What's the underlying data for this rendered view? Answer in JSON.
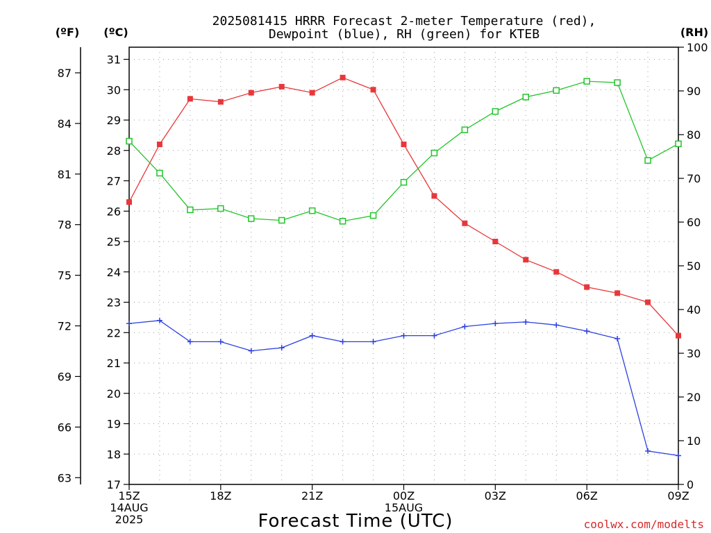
{
  "chart_data": {
    "type": "line",
    "title": [
      "2025081415 HRRR Forecast 2-meter Temperature (red),",
      "Dewpoint (blue), RH (green) for KTEB"
    ],
    "xlabel": "Forecast Time (UTC)",
    "credit": "coolwx.com/modelts",
    "units": {
      "f": "(ºF)",
      "c": "(ºC)",
      "rh": "(RH)"
    },
    "x_hours": [
      15,
      16,
      17,
      18,
      19,
      20,
      21,
      22,
      23,
      24,
      25,
      26,
      27,
      28,
      29,
      30,
      31,
      32,
      33
    ],
    "x_ticks": [
      {
        "h": 15,
        "lines": [
          "15Z",
          "14AUG",
          "2025"
        ]
      },
      {
        "h": 18,
        "lines": [
          "18Z"
        ]
      },
      {
        "h": 21,
        "lines": [
          "21Z"
        ]
      },
      {
        "h": 24,
        "lines": [
          "00Z",
          "15AUG"
        ]
      },
      {
        "h": 27,
        "lines": [
          "03Z"
        ]
      },
      {
        "h": 30,
        "lines": [
          "06Z"
        ]
      },
      {
        "h": 33,
        "lines": [
          "09Z"
        ]
      }
    ],
    "xlim": [
      15,
      33
    ],
    "ylim_c": [
      17,
      31.4
    ],
    "yticks_c": [
      "17",
      "18",
      "19",
      "20",
      "21",
      "22",
      "23",
      "24",
      "25",
      "26",
      "27",
      "28",
      "29",
      "30",
      "31"
    ],
    "yticks_f": [
      "63",
      "66",
      "69",
      "72",
      "75",
      "78",
      "81",
      "84",
      "87"
    ],
    "ylim_rh": [
      0,
      100
    ],
    "yticks_rh": [
      "0",
      "10",
      "20",
      "30",
      "40",
      "50",
      "60",
      "70",
      "80",
      "90",
      "100"
    ],
    "series": [
      {
        "name": "Temperature",
        "axis": "c",
        "color": "#e8373b",
        "marker": "filled-square",
        "values": [
          26.3,
          28.2,
          29.7,
          29.6,
          29.9,
          30.1,
          29.9,
          30.4,
          30.0,
          28.2,
          26.5,
          25.6,
          25.0,
          24.4,
          24.0,
          23.5,
          23.3,
          23.0,
          21.9
        ]
      },
      {
        "name": "Dewpoint",
        "axis": "c",
        "color": "#2b3fe0",
        "marker": "plus",
        "values": [
          22.3,
          22.4,
          21.7,
          21.7,
          21.4,
          21.5,
          21.9,
          21.7,
          21.7,
          21.9,
          21.9,
          22.2,
          22.3,
          22.35,
          22.25,
          22.05,
          21.8,
          18.1,
          17.95
        ]
      },
      {
        "name": "RH",
        "axis": "rh",
        "color": "#22c42a",
        "marker": "open-square",
        "values": [
          78.5,
          71.2,
          62.8,
          63.1,
          60.8,
          60.4,
          62.6,
          60.2,
          61.5,
          69.1,
          75.8,
          81.1,
          85.3,
          88.6,
          90.1,
          92.2,
          91.9,
          74.1,
          77.9
        ]
      }
    ]
  }
}
